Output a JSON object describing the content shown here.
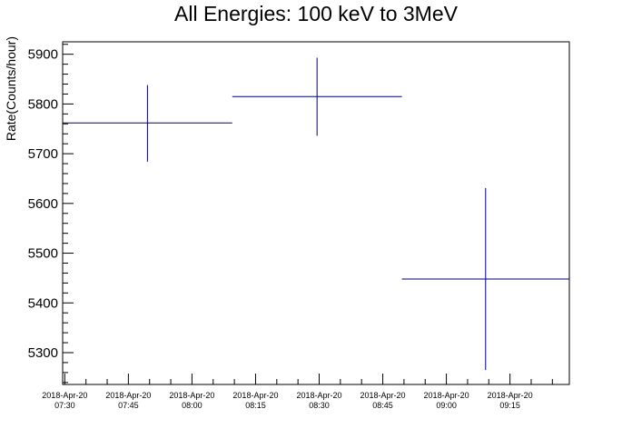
{
  "chart_data": {
    "type": "scatter",
    "title": "All Energies:  100 keV to 3MeV",
    "xlabel": "",
    "ylabel": "Rate(Counts/hour)",
    "x_tick_labels": [
      [
        "2018-Apr-20",
        "07:30"
      ],
      [
        "2018-Apr-20",
        "07:45"
      ],
      [
        "2018-Apr-20",
        "08:00"
      ],
      [
        "2018-Apr-20",
        "08:15"
      ],
      [
        "2018-Apr-20",
        "08:30"
      ],
      [
        "2018-Apr-20",
        "08:45"
      ],
      [
        "2018-Apr-20",
        "09:00"
      ],
      [
        "2018-Apr-20",
        "09:15"
      ]
    ],
    "x_tick_minutes": [
      450,
      465,
      480,
      495,
      510,
      525,
      540,
      555
    ],
    "xlim_minutes": [
      449.5,
      569
    ],
    "y_ticks": [
      5300,
      5400,
      5500,
      5600,
      5700,
      5800,
      5900
    ],
    "ylim": [
      5236,
      5925
    ],
    "series": [
      {
        "color": "#000080",
        "points": [
          {
            "x_start_minutes": 449.5,
            "x_end_minutes": 489.5,
            "y": 5762,
            "y_low": 5684,
            "y_high": 5838
          },
          {
            "x_start_minutes": 489.5,
            "x_end_minutes": 529.5,
            "y": 5815,
            "y_low": 5736,
            "y_high": 5893
          },
          {
            "x_start_minutes": 529.5,
            "x_end_minutes": 569,
            "y": 5448,
            "y_low": 5265,
            "y_high": 5631
          }
        ]
      }
    ],
    "grid": false,
    "legend": "none"
  }
}
